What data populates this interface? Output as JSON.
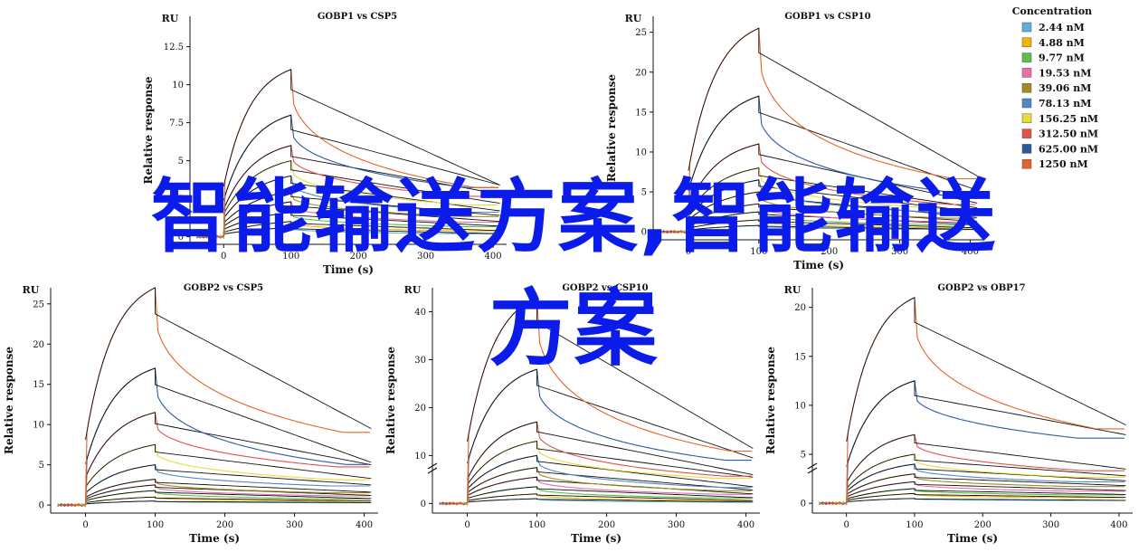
{
  "legend": {
    "title": "Concentration",
    "items": [
      {
        "label": "2.44 nM",
        "color": "#5ab0d9"
      },
      {
        "label": "4.88 nM",
        "color": "#f5b400"
      },
      {
        "label": "9.77 nM",
        "color": "#5fbe48"
      },
      {
        "label": "19.53 nM",
        "color": "#ea6ca8"
      },
      {
        "label": "39.06 nM",
        "color": "#a38b1f"
      },
      {
        "label": "78.13 nM",
        "color": "#4f88c8"
      },
      {
        "label": "156.25 nM",
        "color": "#e6dd3a"
      },
      {
        "label": "312.50 nM",
        "color": "#e3514b"
      },
      {
        "label": "625.00 nM",
        "color": "#2c5aa0"
      },
      {
        "label": "1250 nM",
        "color": "#e5622a"
      }
    ]
  },
  "overlay": {
    "line1": "智能输送方案,智能输送",
    "line2": "方案"
  },
  "chart_data": [
    {
      "type": "line",
      "title": "GOBP1 vs CSP5",
      "unit_label": "RU",
      "xlabel": "Time (s)",
      "ylabel": "Relative response",
      "xlim": [
        -50,
        420
      ],
      "ylim": [
        -0.5,
        14.5
      ],
      "xticks": [
        0,
        100,
        200,
        300,
        400
      ],
      "yticks": [
        0,
        2.5,
        5,
        7.5,
        10,
        12.5
      ],
      "ytick_labels": [
        "0",
        "2.5",
        "5",
        "7.5",
        "10",
        "12.5"
      ],
      "injection_end": 100,
      "series": [
        {
          "peak": 0.6,
          "end": 0.2,
          "color": "#5ab0d9"
        },
        {
          "peak": 1.0,
          "end": 0.4,
          "color": "#f5b400"
        },
        {
          "peak": 1.6,
          "end": 0.7,
          "color": "#5fbe48"
        },
        {
          "peak": 2.3,
          "end": 1.0,
          "color": "#ea6ca8"
        },
        {
          "peak": 3.0,
          "end": 1.4,
          "color": "#a38b1f"
        },
        {
          "peak": 4.0,
          "end": 1.7,
          "color": "#4f88c8"
        },
        {
          "peak": 5.0,
          "end": 2.2,
          "color": "#e6dd3a"
        },
        {
          "peak": 6.0,
          "end": 2.8,
          "color": "#e3514b"
        },
        {
          "peak": 8.0,
          "end": 3.4,
          "color": "#2c5aa0"
        },
        {
          "peak": 11.0,
          "end": 3.4,
          "color": "#e5622a"
        }
      ]
    },
    {
      "type": "line",
      "title": "GOBP1 vs CSP10",
      "unit_label": "RU",
      "xlabel": "Time (s)",
      "ylabel": "Relative response",
      "xlim": [
        -50,
        420
      ],
      "ylim": [
        -1,
        27
      ],
      "xticks": [
        0,
        100,
        200,
        300,
        400
      ],
      "yticks": [
        0,
        5,
        10,
        15,
        20,
        25
      ],
      "ytick_labels": [
        "0",
        "5",
        "10",
        "15",
        "20",
        "25"
      ],
      "injection_end": 100,
      "series": [
        {
          "peak": 0.8,
          "end": 0.3,
          "color": "#5ab0d9"
        },
        {
          "peak": 1.5,
          "end": 0.5,
          "color": "#f5b400"
        },
        {
          "peak": 2.5,
          "end": 0.9,
          "color": "#5fbe48"
        },
        {
          "peak": 3.5,
          "end": 1.3,
          "color": "#ea6ca8"
        },
        {
          "peak": 5.0,
          "end": 1.8,
          "color": "#a38b1f"
        },
        {
          "peak": 6.5,
          "end": 2.5,
          "color": "#4f88c8"
        },
        {
          "peak": 8.0,
          "end": 3.0,
          "color": "#e6dd3a"
        },
        {
          "peak": 11.0,
          "end": 3.6,
          "color": "#e3514b"
        },
        {
          "peak": 17.0,
          "end": 5.2,
          "color": "#2c5aa0"
        },
        {
          "peak": 25.5,
          "end": 7.0,
          "color": "#e5622a"
        }
      ]
    },
    {
      "type": "line",
      "title": "GOBP2 vs CSP5",
      "unit_label": "RU",
      "xlabel": "Time (s)",
      "ylabel": "Relative response",
      "xlim": [
        -50,
        420
      ],
      "ylim": [
        -1,
        27
      ],
      "xticks": [
        0,
        100,
        200,
        300,
        400
      ],
      "yticks": [
        0,
        5,
        10,
        15,
        20,
        25
      ],
      "ytick_labels": [
        "0",
        "5",
        "10",
        "15",
        "20",
        "25"
      ],
      "injection_end": 100,
      "series": [
        {
          "peak": 0.5,
          "end": 0.3,
          "color": "#5ab0d9"
        },
        {
          "peak": 1.0,
          "end": 0.5,
          "color": "#f5b400"
        },
        {
          "peak": 1.8,
          "end": 0.8,
          "color": "#5fbe48"
        },
        {
          "peak": 2.5,
          "end": 1.2,
          "color": "#ea6ca8"
        },
        {
          "peak": 3.2,
          "end": 1.6,
          "color": "#a38b1f"
        },
        {
          "peak": 5.0,
          "end": 2.5,
          "color": "#4f88c8"
        },
        {
          "peak": 7.5,
          "end": 3.3,
          "color": "#e6dd3a"
        },
        {
          "peak": 11.5,
          "end": 5.0,
          "color": "#e3514b"
        },
        {
          "peak": 17.0,
          "end": 5.3,
          "color": "#2c5aa0"
        },
        {
          "peak": 27.0,
          "end": 9.5,
          "color": "#e5622a"
        }
      ]
    },
    {
      "type": "line",
      "title": "GOBP2 vs CSP10",
      "unit_label": "RU",
      "xlabel": "Time (s)",
      "ylabel": "Relative response",
      "xlim": [
        -50,
        420
      ],
      "ylim": [
        -2,
        45
      ],
      "xticks": [
        0,
        100,
        200,
        300,
        400
      ],
      "yticks": [
        0,
        10,
        20,
        30,
        40
      ],
      "ytick_labels": [
        "0",
        "10",
        "20",
        "30",
        "40"
      ],
      "injection_end": 100,
      "series": [
        {
          "peak": 1.0,
          "end": 0.3,
          "color": "#5ab0d9"
        },
        {
          "peak": 2.0,
          "end": 0.6,
          "color": "#f5b400"
        },
        {
          "peak": 3.5,
          "end": 1.2,
          "color": "#5fbe48"
        },
        {
          "peak": 5.5,
          "end": 2.0,
          "color": "#ea6ca8"
        },
        {
          "peak": 7.5,
          "end": 2.8,
          "color": "#a38b1f"
        },
        {
          "peak": 10.0,
          "end": 3.5,
          "color": "#4f88c8"
        },
        {
          "peak": 13.0,
          "end": 5.5,
          "color": "#e6dd3a"
        },
        {
          "peak": 17.0,
          "end": 6.0,
          "color": "#e3514b"
        },
        {
          "peak": 28.0,
          "end": 9.5,
          "color": "#2c5aa0"
        },
        {
          "peak": 43.0,
          "end": 11.5,
          "color": "#e5622a"
        }
      ]
    },
    {
      "type": "line",
      "title": "GOBP2 vs OBP17",
      "unit_label": "RU",
      "xlabel": "Time (s)",
      "ylabel": "Relative response",
      "xlim": [
        -50,
        420
      ],
      "ylim": [
        -1,
        22
      ],
      "xticks": [
        0,
        100,
        200,
        300,
        400
      ],
      "yticks": [
        0,
        5,
        10,
        15,
        20
      ],
      "ytick_labels": [
        "0",
        "5",
        "10",
        "15",
        "20"
      ],
      "injection_end": 100,
      "series": [
        {
          "peak": 0.5,
          "end": 0.3,
          "color": "#5ab0d9"
        },
        {
          "peak": 1.0,
          "end": 0.6,
          "color": "#f5b400"
        },
        {
          "peak": 1.5,
          "end": 0.9,
          "color": "#5fbe48"
        },
        {
          "peak": 2.2,
          "end": 1.3,
          "color": "#ea6ca8"
        },
        {
          "peak": 3.0,
          "end": 1.8,
          "color": "#a38b1f"
        },
        {
          "peak": 4.0,
          "end": 2.3,
          "color": "#4f88c8"
        },
        {
          "peak": 5.0,
          "end": 2.8,
          "color": "#e6dd3a"
        },
        {
          "peak": 7.0,
          "end": 3.5,
          "color": "#e3514b"
        },
        {
          "peak": 12.5,
          "end": 7.0,
          "color": "#2c5aa0"
        },
        {
          "peak": 21.0,
          "end": 8.0,
          "color": "#e5622a"
        }
      ]
    }
  ]
}
